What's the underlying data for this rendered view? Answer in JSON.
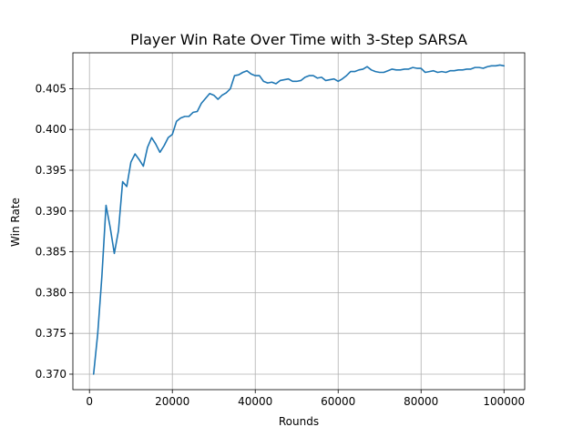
{
  "chart_data": {
    "type": "line",
    "title": "Player Win Rate Over Time with 3-Step SARSA",
    "xlabel": "Rounds",
    "ylabel": "Win Rate",
    "xlim": [
      -4000,
      105000
    ],
    "ylim": [
      0.3681,
      0.4094
    ],
    "grid": true,
    "x_ticks": [
      0,
      20000,
      40000,
      60000,
      80000,
      100000
    ],
    "x_tick_labels": [
      "0",
      "20000",
      "40000",
      "60000",
      "80000",
      "100000"
    ],
    "y_ticks": [
      0.37,
      0.375,
      0.38,
      0.385,
      0.39,
      0.395,
      0.4,
      0.405
    ],
    "y_tick_labels": [
      "0.370",
      "0.375",
      "0.380",
      "0.385",
      "0.390",
      "0.395",
      "0.400",
      "0.405"
    ],
    "colors": {
      "line": "#1f77b4",
      "grid": "#b0b0b0",
      "axes": "#000000"
    },
    "series": [
      {
        "x": [
          1000,
          2000,
          3000,
          4000,
          5000,
          6000,
          7000,
          8000,
          9000,
          10000,
          11000,
          12000,
          13000,
          14000,
          15000,
          16000,
          17000,
          18000,
          19000,
          20000,
          21000,
          22000,
          23000,
          24000,
          25000,
          26000,
          27000,
          28000,
          29000,
          30000,
          31000,
          32000,
          33000,
          34000,
          35000,
          36000,
          37000,
          38000,
          39000,
          40000,
          41000,
          42000,
          43000,
          44000,
          45000,
          46000,
          47000,
          48000,
          49000,
          50000,
          51000,
          52000,
          53000,
          54000,
          55000,
          56000,
          57000,
          58000,
          59000,
          60000,
          61000,
          62000,
          63000,
          64000,
          65000,
          66000,
          67000,
          68000,
          69000,
          70000,
          71000,
          72000,
          73000,
          74000,
          75000,
          76000,
          77000,
          78000,
          79000,
          80000,
          81000,
          82000,
          83000,
          84000,
          85000,
          86000,
          87000,
          88000,
          89000,
          90000,
          91000,
          92000,
          93000,
          94000,
          95000,
          96000,
          97000,
          98000,
          99000,
          100000
        ],
        "values": [
          0.37,
          0.375,
          0.382,
          0.3907,
          0.388,
          0.3848,
          0.3876,
          0.3936,
          0.393,
          0.396,
          0.397,
          0.3963,
          0.3955,
          0.3978,
          0.399,
          0.3982,
          0.3972,
          0.398,
          0.399,
          0.3994,
          0.401,
          0.4014,
          0.4016,
          0.4016,
          0.4021,
          0.4022,
          0.4032,
          0.4038,
          0.4044,
          0.4042,
          0.4037,
          0.4042,
          0.4045,
          0.405,
          0.4066,
          0.4067,
          0.407,
          0.4072,
          0.4068,
          0.4066,
          0.4066,
          0.4059,
          0.4057,
          0.4058,
          0.4056,
          0.406,
          0.4061,
          0.4062,
          0.4059,
          0.4059,
          0.406,
          0.4064,
          0.4066,
          0.4066,
          0.4063,
          0.4064,
          0.406,
          0.4061,
          0.4062,
          0.4059,
          0.4062,
          0.4066,
          0.4071,
          0.4071,
          0.4073,
          0.4074,
          0.4077,
          0.4073,
          0.4071,
          0.407,
          0.407,
          0.4072,
          0.4074,
          0.4073,
          0.4073,
          0.4074,
          0.4074,
          0.4076,
          0.4075,
          0.4075,
          0.407,
          0.4071,
          0.4072,
          0.407,
          0.4071,
          0.407,
          0.4072,
          0.4072,
          0.4073,
          0.4073,
          0.4074,
          0.4074,
          0.4076,
          0.4076,
          0.4075,
          0.4077,
          0.4078,
          0.4078,
          0.4079,
          0.4078
        ]
      }
    ]
  }
}
